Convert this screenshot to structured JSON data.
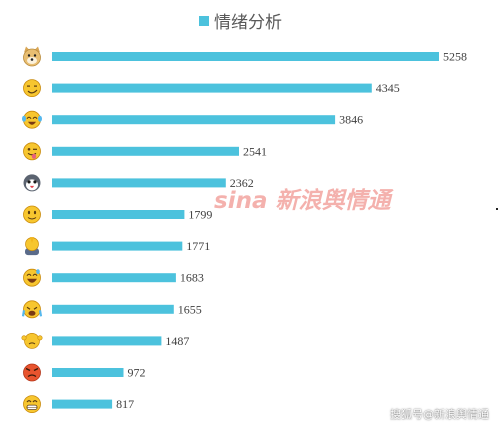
{
  "chart_data": {
    "type": "bar",
    "orientation": "horizontal",
    "legend": {
      "label": "情绪分析",
      "position": "top",
      "color": "#4CC2DD"
    },
    "bar_color": "#4CC2DD",
    "categories": [
      "doge-emoji",
      "smirk-emoji",
      "laugh-cry-emoji",
      "tongue-emoji",
      "husky-emoji",
      "smile-emoji",
      "pray-emoji",
      "grin-sweat-emoji",
      "sob-emoji",
      "shrug-emoji",
      "angry-emoji",
      "grimace-emoji"
    ],
    "values": [
      5258,
      4345,
      3846,
      2541,
      2362,
      1799,
      1771,
      1683,
      1655,
      1487,
      972,
      817
    ],
    "xlim": [
      0,
      5258
    ],
    "grid": false
  },
  "watermark": {
    "text": "新浪舆情通",
    "brand": "sina"
  },
  "credit": "搜狐号@新浪舆情通"
}
